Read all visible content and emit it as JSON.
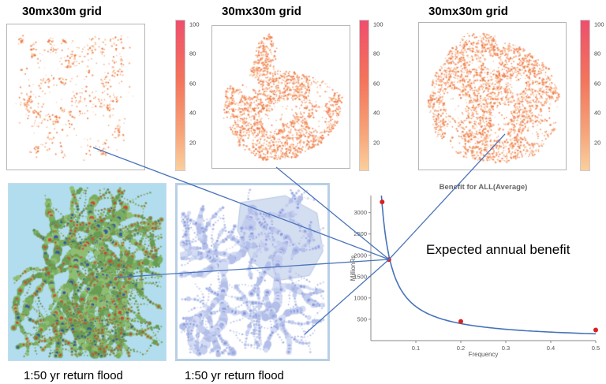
{
  "figure": {
    "grid_panels": [
      {
        "label": "30mx30m grid"
      },
      {
        "label": "30mx30m grid"
      },
      {
        "label": "30mx30m grid"
      }
    ],
    "colorbar": {
      "ticks": [
        100,
        80,
        60,
        40,
        20
      ],
      "top_color": "#ee4f6d",
      "bottom_color": "#fbcf9d"
    },
    "flood_maps": [
      {
        "label": "1:50 yr return flood"
      },
      {
        "label": "1:50 yr return flood"
      }
    ],
    "annotation": "Expected annual benefit",
    "connector_color": "#4a74ba"
  },
  "chart_data": {
    "type": "scatter",
    "title": "Benefit for ALL(Average)",
    "xlabel": "Frequency",
    "ylabel": "MillionRs",
    "xlim": [
      0,
      0.5
    ],
    "ylim": [
      0,
      3400
    ],
    "xticks": [
      0.1,
      0.2,
      0.3,
      0.4,
      0.5
    ],
    "yticks": [
      500,
      1000,
      1500,
      2000,
      2500,
      3000
    ],
    "points": [
      [
        0.025,
        3250
      ],
      [
        0.04,
        1900
      ],
      [
        0.2,
        450
      ],
      [
        0.5,
        250
      ]
    ],
    "curve": {
      "type": "hyperbola",
      "k": 80
    },
    "point_color": "#d92121",
    "curve_color": "#4673b9",
    "grid": false,
    "legend": "none"
  }
}
